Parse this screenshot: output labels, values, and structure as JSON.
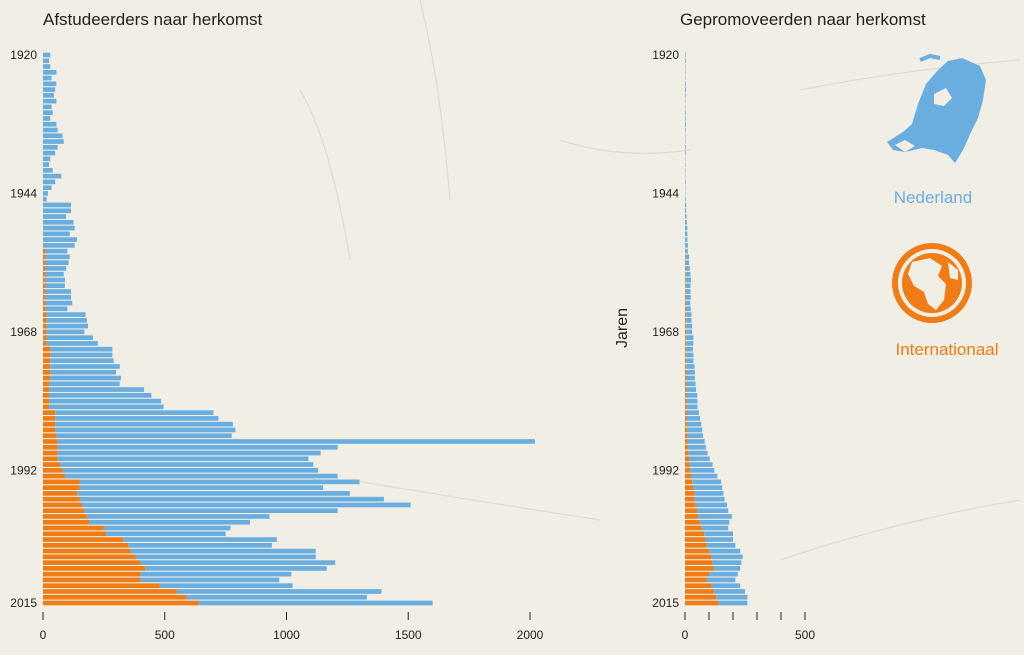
{
  "colors": {
    "nederland": "#6aaee0",
    "internationaal": "#ef7c14"
  },
  "legend": {
    "nederland": {
      "label": "Nederland",
      "icon": "netherlands-map-icon"
    },
    "internationaal": {
      "label": "Internationaal",
      "icon": "globe-icon"
    }
  },
  "chart_data": [
    {
      "type": "bar",
      "orientation": "horizontal",
      "stacked": true,
      "title": "Afstudeerders naar herkomst",
      "ylabel": "",
      "xlim": [
        0,
        2000
      ],
      "xticks": [
        0,
        500,
        1000,
        1500,
        2000
      ],
      "yticks": [
        "1920",
        "1944",
        "1968",
        "1992",
        "2015"
      ],
      "ylim": [
        1920,
        2015
      ],
      "legend": "none",
      "series": [
        {
          "name": "Nederland",
          "start": 1920,
          "values": [
            30,
            25,
            30,
            55,
            35,
            55,
            50,
            45,
            55,
            35,
            40,
            30,
            55,
            60,
            80,
            85,
            60,
            50,
            30,
            25,
            40,
            75,
            50,
            35,
            20,
            15,
            115,
            115,
            95,
            125,
            130,
            110,
            140,
            130,
            90,
            100,
            95,
            85,
            75,
            80,
            80,
            105,
            105,
            110,
            90,
            160,
            165,
            170,
            155,
            190,
            210,
            255,
            255,
            260,
            285,
            270,
            290,
            290,
            390,
            420,
            460,
            470,
            650,
            670,
            730,
            740,
            720,
            1960,
            1150,
            1080,
            1030,
            1040,
            1050,
            1120,
            1150,
            1000,
            1120,
            1250,
            1350,
            1040,
            750,
            660,
            520,
            490,
            630,
            590,
            760,
            740,
            800,
            745,
            620,
            570,
            545,
            840,
            740,
            960,
            970,
            1020
          ]
        },
        {
          "name": "Internationaal",
          "start": 1920,
          "values": [
            0,
            0,
            0,
            0,
            0,
            0,
            0,
            0,
            0,
            0,
            0,
            0,
            0,
            0,
            0,
            0,
            0,
            0,
            0,
            0,
            0,
            0,
            0,
            0,
            0,
            0,
            0,
            0,
            0,
            0,
            0,
            0,
            0,
            0,
            10,
            10,
            10,
            10,
            10,
            10,
            10,
            10,
            10,
            10,
            10,
            15,
            15,
            15,
            15,
            15,
            15,
            30,
            30,
            30,
            30,
            30,
            30,
            25,
            25,
            25,
            25,
            25,
            50,
            50,
            50,
            50,
            55,
            60,
            60,
            60,
            60,
            70,
            80,
            90,
            150,
            150,
            140,
            150,
            160,
            170,
            180,
            190,
            250,
            260,
            330,
            350,
            360,
            380,
            400,
            420,
            400,
            400,
            480,
            550,
            590,
            640,
            690,
            730
          ]
        }
      ]
    },
    {
      "type": "bar",
      "orientation": "horizontal",
      "stacked": true,
      "title": "Gepromoveerden naar herkomst",
      "ylabel": "Jaren",
      "xlim": [
        0,
        500
      ],
      "xticks": [
        0,
        500
      ],
      "yticks": [
        "1920",
        "1944",
        "1968",
        "1992",
        "2015"
      ],
      "ylim": [
        1920,
        2015
      ],
      "legend": "right",
      "series": [
        {
          "name": "Nederland",
          "start": 1920,
          "values": [
            3,
            3,
            2,
            2,
            2,
            3,
            4,
            3,
            2,
            2,
            3,
            3,
            4,
            3,
            2,
            2,
            3,
            3,
            2,
            2,
            2,
            2,
            3,
            2,
            2,
            3,
            5,
            5,
            6,
            8,
            10,
            10,
            10,
            12,
            10,
            15,
            15,
            18,
            20,
            22,
            20,
            20,
            20,
            18,
            20,
            22,
            22,
            25,
            25,
            30,
            30,
            28,
            30,
            30,
            35,
            35,
            35,
            38,
            40,
            45,
            45,
            45,
            50,
            55,
            60,
            62,
            65,
            70,
            75,
            80,
            85,
            95,
            100,
            110,
            120,
            120,
            120,
            125,
            130,
            130,
            140,
            125,
            110,
            120,
            115,
            120,
            130,
            130,
            120,
            110,
            120,
            120,
            120,
            130,
            130,
            120,
            130,
            130
          ]
        },
        {
          "name": "Internationaal",
          "start": 1920,
          "values": [
            0,
            0,
            0,
            0,
            0,
            0,
            0,
            0,
            0,
            0,
            0,
            0,
            0,
            0,
            0,
            0,
            0,
            0,
            0,
            0,
            0,
            0,
            0,
            0,
            0,
            0,
            0,
            0,
            0,
            0,
            0,
            0,
            0,
            0,
            2,
            2,
            2,
            2,
            3,
            3,
            3,
            3,
            4,
            4,
            4,
            5,
            5,
            5,
            5,
            5,
            5,
            5,
            5,
            5,
            5,
            6,
            6,
            6,
            6,
            6,
            7,
            7,
            8,
            8,
            8,
            10,
            10,
            12,
            12,
            14,
            18,
            20,
            22,
            25,
            30,
            35,
            40,
            40,
            45,
            50,
            55,
            60,
            70,
            80,
            85,
            90,
            100,
            110,
            115,
            120,
            100,
            90,
            110,
            120,
            130,
            140,
            150,
            160
          ]
        }
      ]
    }
  ]
}
